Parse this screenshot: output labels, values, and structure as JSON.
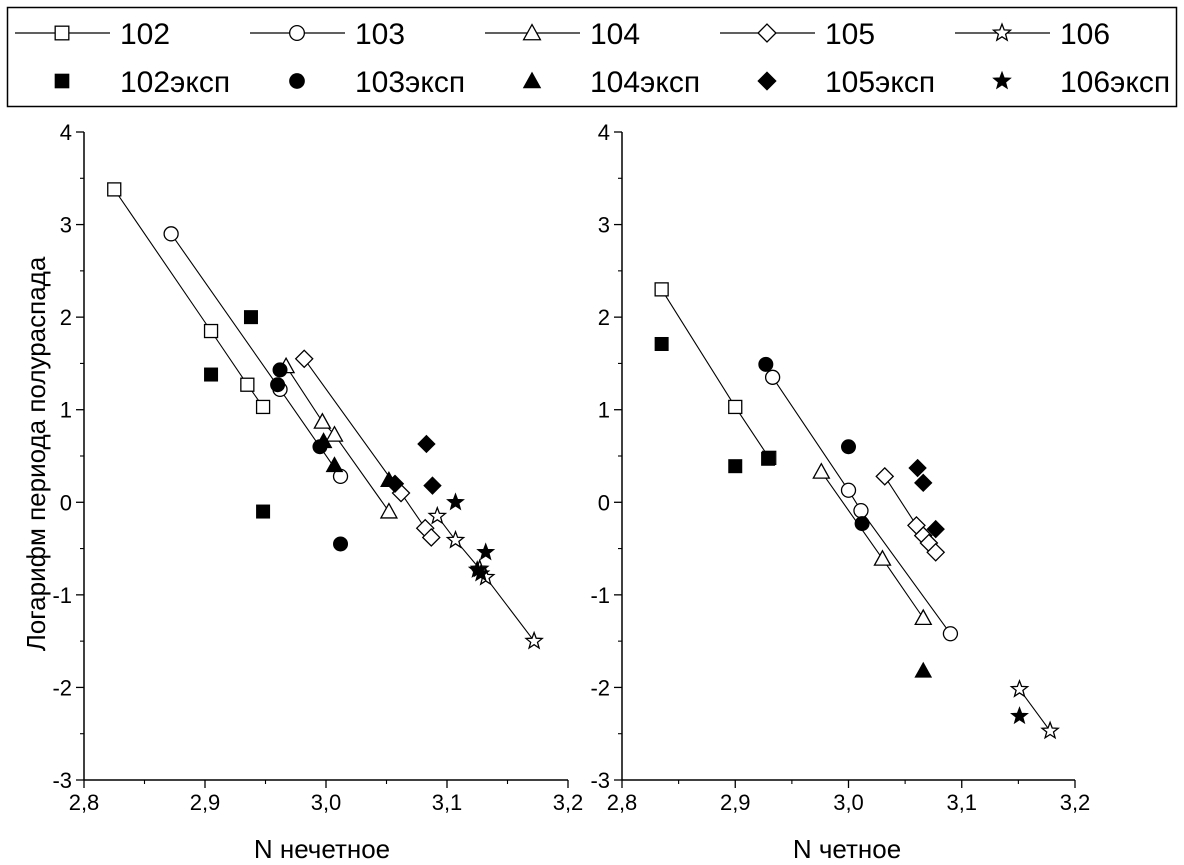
{
  "legend": {
    "placement": "top",
    "items": [
      {
        "label": "102",
        "marker": "square",
        "filled": false
      },
      {
        "label": "103",
        "marker": "circle",
        "filled": false
      },
      {
        "label": "104",
        "marker": "triangle",
        "filled": false
      },
      {
        "label": "105",
        "marker": "diamond",
        "filled": false
      },
      {
        "label": "106",
        "marker": "star",
        "filled": false
      },
      {
        "label": "102эксп",
        "marker": "square",
        "filled": true
      },
      {
        "label": "103эксп",
        "marker": "circle",
        "filled": true
      },
      {
        "label": "104эксп",
        "marker": "triangle",
        "filled": true
      },
      {
        "label": "105эксп",
        "marker": "diamond",
        "filled": true
      },
      {
        "label": "106эксп",
        "marker": "star",
        "filled": true
      }
    ]
  },
  "chart_data": [
    {
      "type": "scatter",
      "xlabel": "N нечетное",
      "ylabel": "Логарифм периода полураспада",
      "xlim": [
        2.8,
        3.2
      ],
      "ylim": [
        -3,
        4
      ],
      "xticks": [
        "2,8",
        "2,9",
        "3,0",
        "3,1",
        "3,2"
      ],
      "yticks": [
        "-3",
        "-2",
        "-1",
        "0",
        "1",
        "2",
        "3",
        "4"
      ],
      "grid": false,
      "series": [
        {
          "name": "102",
          "marker": "square",
          "filled": false,
          "line": true,
          "points": [
            [
              2.825,
              3.38
            ],
            [
              2.905,
              1.85
            ],
            [
              2.935,
              1.27
            ],
            [
              2.948,
              1.03
            ]
          ]
        },
        {
          "name": "103",
          "marker": "circle",
          "filled": false,
          "line": true,
          "points": [
            [
              2.872,
              2.9
            ],
            [
              2.962,
              1.22
            ],
            [
              3.012,
              0.28
            ]
          ]
        },
        {
          "name": "104",
          "marker": "triangle",
          "filled": false,
          "line": true,
          "points": [
            [
              2.967,
              1.47
            ],
            [
              2.997,
              0.87
            ],
            [
              3.007,
              0.73
            ],
            [
              3.052,
              -0.1
            ]
          ]
        },
        {
          "name": "105",
          "marker": "diamond",
          "filled": false,
          "line": true,
          "points": [
            [
              2.982,
              1.55
            ],
            [
              3.062,
              0.1
            ],
            [
              3.082,
              -0.28
            ],
            [
              3.087,
              -0.38
            ]
          ]
        },
        {
          "name": "106",
          "marker": "star",
          "filled": false,
          "line": true,
          "points": [
            [
              3.092,
              -0.15
            ],
            [
              3.107,
              -0.41
            ],
            [
              3.127,
              -0.72
            ],
            [
              3.132,
              -0.81
            ],
            [
              3.172,
              -1.5
            ]
          ]
        },
        {
          "name": "102эксп",
          "marker": "square",
          "filled": true,
          "line": false,
          "points": [
            [
              2.905,
              1.38
            ],
            [
              2.938,
              2.0
            ],
            [
              2.948,
              -0.1
            ]
          ]
        },
        {
          "name": "103эксп",
          "marker": "circle",
          "filled": true,
          "line": false,
          "points": [
            [
              2.96,
              1.27
            ],
            [
              2.962,
              1.43
            ],
            [
              2.995,
              0.6
            ],
            [
              3.012,
              -0.45
            ]
          ]
        },
        {
          "name": "104эксп",
          "marker": "triangle",
          "filled": true,
          "line": false,
          "points": [
            [
              2.998,
              0.66
            ],
            [
              3.007,
              0.4
            ],
            [
              3.052,
              0.24
            ]
          ]
        },
        {
          "name": "105эксп",
          "marker": "diamond",
          "filled": true,
          "line": false,
          "points": [
            [
              3.057,
              0.2
            ],
            [
              3.083,
              0.63
            ],
            [
              3.088,
              0.18
            ]
          ]
        },
        {
          "name": "106эксп",
          "marker": "star",
          "filled": true,
          "line": false,
          "points": [
            [
              3.107,
              0.0
            ],
            [
              3.125,
              -0.73
            ],
            [
              3.128,
              -0.77
            ],
            [
              3.132,
              -0.54
            ]
          ]
        }
      ]
    },
    {
      "type": "scatter",
      "xlabel": "N четное",
      "ylabel": "",
      "xlim": [
        2.8,
        3.2
      ],
      "ylim": [
        -3,
        4
      ],
      "xticks": [
        "2,8",
        "2,9",
        "3,0",
        "3,1",
        "3,2"
      ],
      "yticks": [
        "-3",
        "-2",
        "-1",
        "0",
        "1",
        "2",
        "3",
        "4"
      ],
      "grid": false,
      "series": [
        {
          "name": "102",
          "marker": "square",
          "filled": false,
          "line": true,
          "points": [
            [
              2.835,
              2.3
            ],
            [
              2.9,
              1.03
            ],
            [
              2.93,
              0.48
            ]
          ]
        },
        {
          "name": "103",
          "marker": "circle",
          "filled": false,
          "line": true,
          "points": [
            [
              2.933,
              1.35
            ],
            [
              3.0,
              0.13
            ],
            [
              3.011,
              -0.09
            ],
            [
              3.09,
              -1.42
            ]
          ]
        },
        {
          "name": "104",
          "marker": "triangle",
          "filled": false,
          "line": true,
          "points": [
            [
              2.976,
              0.33
            ],
            [
              3.03,
              -0.61
            ],
            [
              3.066,
              -1.25
            ]
          ]
        },
        {
          "name": "105",
          "marker": "diamond",
          "filled": false,
          "line": true,
          "points": [
            [
              3.032,
              0.28
            ],
            [
              3.06,
              -0.25
            ],
            [
              3.066,
              -0.36
            ],
            [
              3.071,
              -0.44
            ],
            [
              3.077,
              -0.54
            ]
          ]
        },
        {
          "name": "106",
          "marker": "star",
          "filled": false,
          "line": true,
          "points": [
            [
              3.151,
              -2.02
            ],
            [
              3.178,
              -2.47
            ]
          ]
        },
        {
          "name": "102эксп",
          "marker": "square",
          "filled": true,
          "line": false,
          "points": [
            [
              2.835,
              1.71
            ],
            [
              2.9,
              0.39
            ],
            [
              2.929,
              0.47
            ]
          ]
        },
        {
          "name": "103эксп",
          "marker": "circle",
          "filled": true,
          "line": false,
          "points": [
            [
              2.927,
              1.49
            ],
            [
              3.0,
              0.6
            ],
            [
              3.012,
              -0.23
            ]
          ]
        },
        {
          "name": "104эксп",
          "marker": "triangle",
          "filled": true,
          "line": false,
          "points": [
            [
              3.066,
              -1.82
            ]
          ]
        },
        {
          "name": "105эксп",
          "marker": "diamond",
          "filled": true,
          "line": false,
          "points": [
            [
              3.061,
              0.37
            ],
            [
              3.066,
              0.21
            ],
            [
              3.077,
              -0.29
            ]
          ]
        },
        {
          "name": "106эксп",
          "marker": "star",
          "filled": true,
          "line": false,
          "points": [
            [
              3.151,
              -2.31
            ]
          ]
        }
      ]
    }
  ]
}
